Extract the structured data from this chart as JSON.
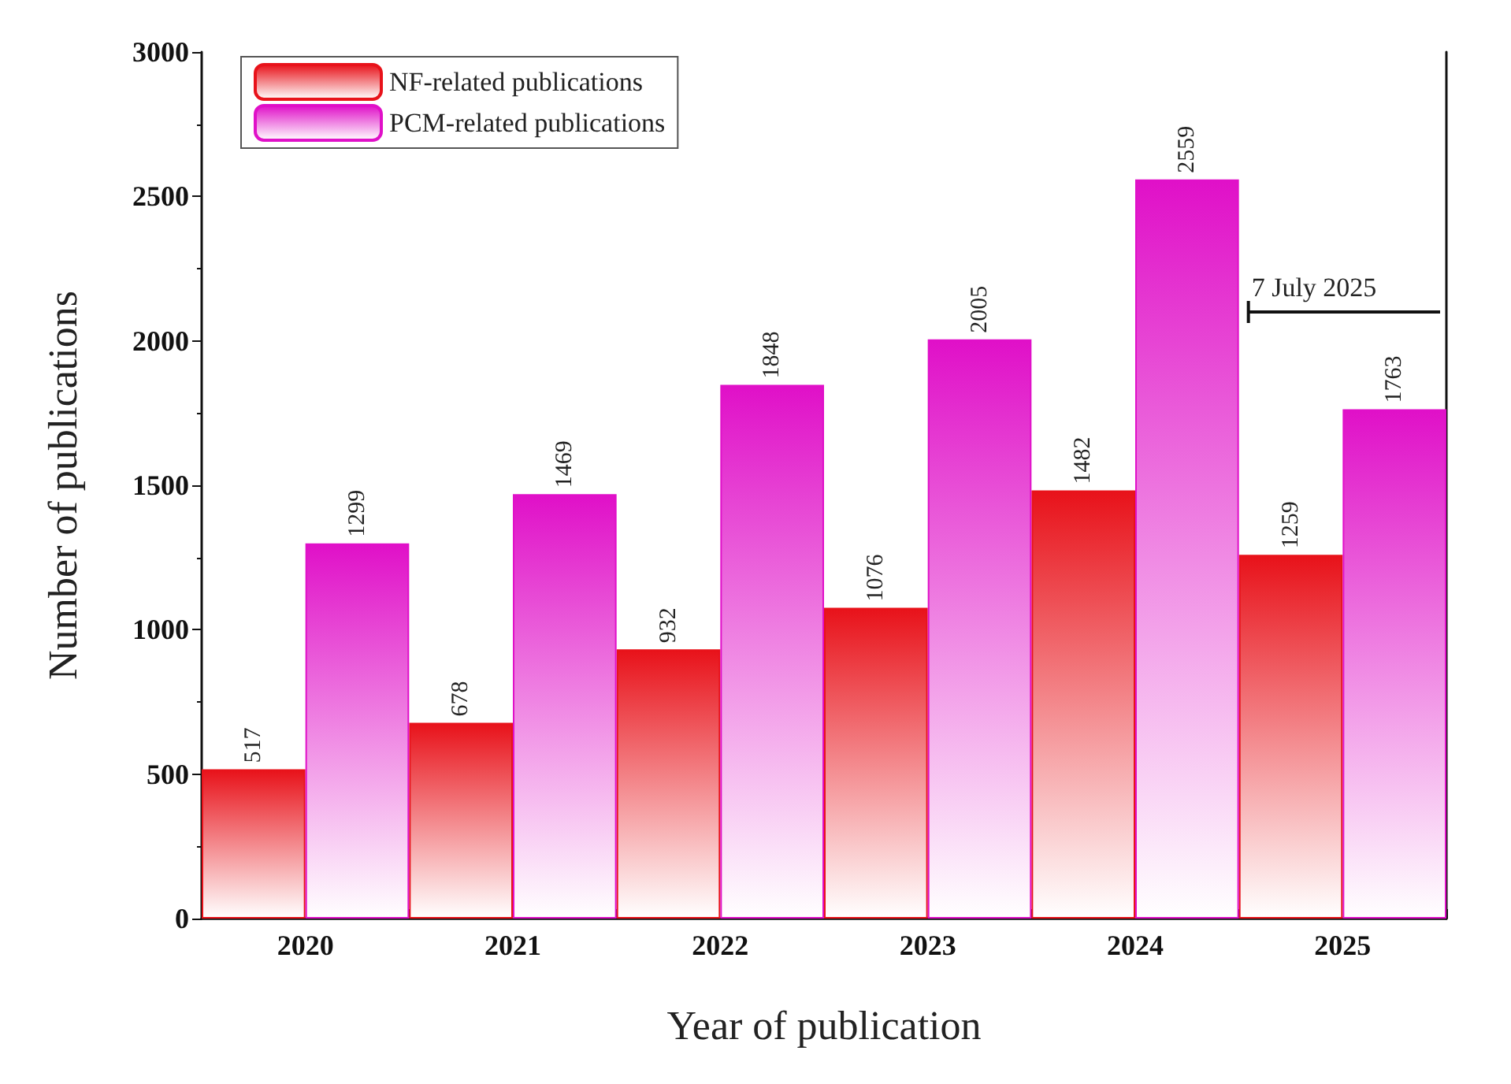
{
  "chart_data": {
    "type": "bar",
    "xlabel": "Year of publication",
    "ylabel": "Number of publications",
    "categories": [
      "2020",
      "2021",
      "2022",
      "2023",
      "2024",
      "2025"
    ],
    "series": [
      {
        "name": "NF-related publications",
        "color": "#e8121a",
        "values": [
          517,
          678,
          932,
          1076,
          1482,
          1259
        ]
      },
      {
        "name": "PCM-related publications",
        "color": "#e010c8",
        "values": [
          1299,
          1469,
          1848,
          2005,
          2559,
          1763
        ]
      }
    ],
    "ylim": [
      0,
      3000
    ],
    "yticks": [
      0,
      500,
      1000,
      1500,
      2000,
      2500,
      3000
    ],
    "data_labels": true,
    "legend": "top left",
    "grid": false,
    "annotations": [
      "7 July 2025"
    ]
  }
}
